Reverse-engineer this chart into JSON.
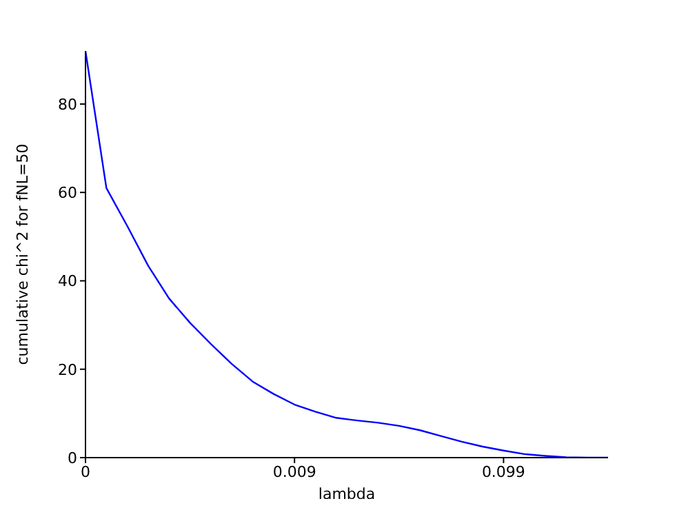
{
  "chart_data": {
    "type": "line",
    "xlabel": "lambda",
    "ylabel": "cumulative chi^2 for fNL=50",
    "categories": [
      "0",
      null,
      null,
      null,
      null,
      null,
      null,
      null,
      null,
      null,
      "0.009",
      null,
      null,
      null,
      null,
      null,
      null,
      null,
      null,
      null,
      "0.099",
      null,
      null,
      null,
      null,
      null
    ],
    "series": [
      {
        "color": "#0000ff",
        "values": [
          92,
          61.0,
          52.4,
          43.4,
          36.0,
          30.5,
          25.7,
          21.2,
          17.2,
          14.4,
          12.0,
          10.4,
          9.0,
          8.4,
          7.9,
          7.2,
          6.2,
          4.9,
          3.6,
          2.5,
          1.6,
          0.8,
          0.4,
          0.1,
          0,
          0
        ]
      }
    ],
    "ylim": [
      0,
      92
    ],
    "yticks": [
      0,
      20,
      40,
      60,
      80
    ],
    "grid": false,
    "marker": "none",
    "line_style": "solid"
  }
}
